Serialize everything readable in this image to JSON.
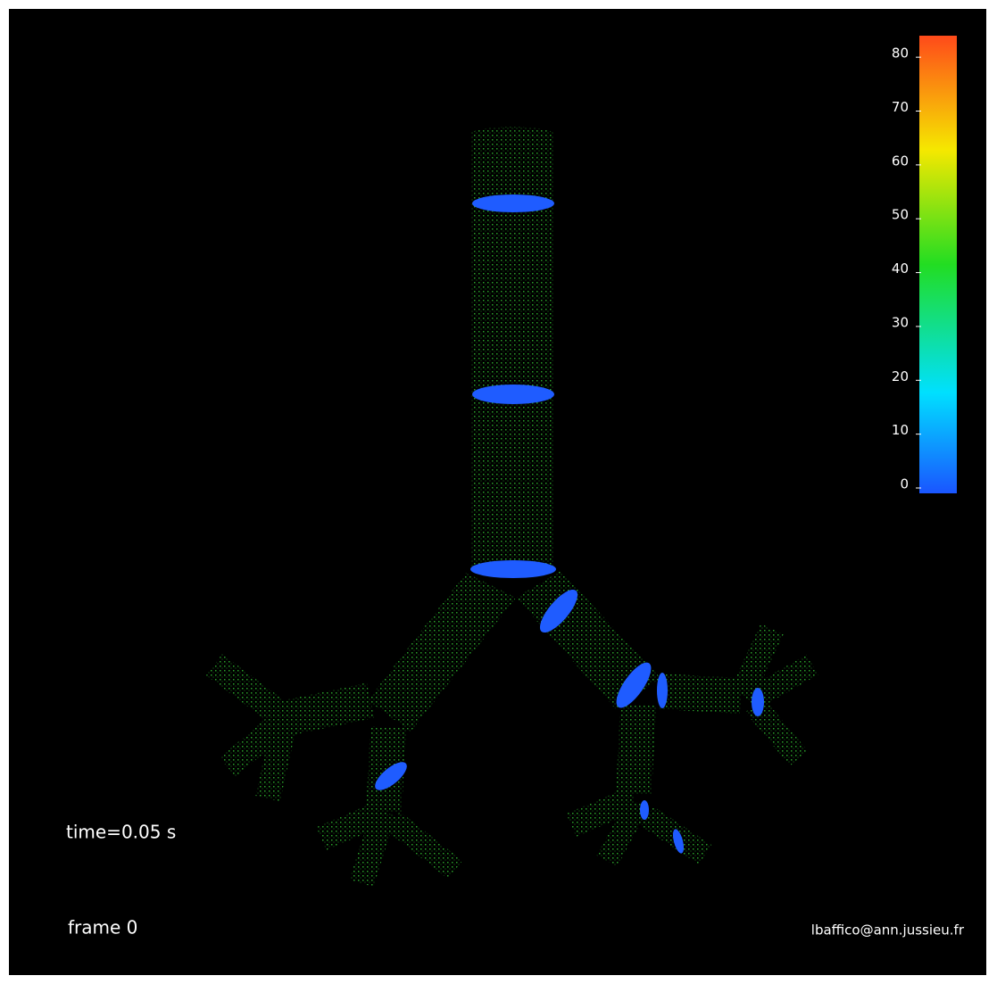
{
  "colorbar": {
    "lim": [
      0,
      84
    ],
    "ticks": [
      0,
      10,
      20,
      30,
      40,
      50,
      60,
      70,
      80
    ]
  },
  "time_label": "time=0.05 s",
  "frame_label": "frame 0",
  "credit": "lbaffico@ann.jussieu.fr"
}
